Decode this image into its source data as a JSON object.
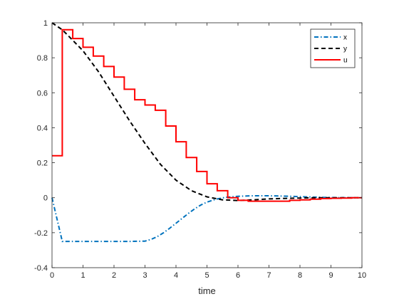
{
  "chart_data": {
    "type": "line",
    "xlabel": "time",
    "ylabel": "",
    "xlim": [
      0,
      10
    ],
    "ylim": [
      -0.4,
      1
    ],
    "xticks": [
      0,
      1,
      2,
      3,
      4,
      5,
      6,
      7,
      8,
      9,
      10
    ],
    "yticks": [
      -0.4,
      -0.2,
      0,
      0.2,
      0.4,
      0.6,
      0.8,
      1
    ],
    "xtick_labels": [
      "0",
      "1",
      "2",
      "3",
      "4",
      "5",
      "6",
      "7",
      "8",
      "9",
      "10"
    ],
    "ytick_labels": [
      "-0.4",
      "-0.2",
      "0",
      "0.2",
      "0.4",
      "0.6",
      "0.8",
      "1"
    ],
    "grid": false,
    "legend_position": "top-right",
    "series": [
      {
        "name": "x",
        "color": "#0072BD",
        "style": "dash-dot",
        "x": [
          0,
          0.33,
          1,
          2,
          2.5,
          3,
          3.2,
          3.4,
          3.6,
          3.8,
          4.0,
          4.2,
          4.4,
          4.6,
          4.8,
          5.0,
          5.3,
          5.6,
          6.0,
          6.5,
          7.0,
          7.5,
          8.0,
          8.5,
          9.0,
          9.5,
          10.0
        ],
        "y": [
          0,
          -0.25,
          -0.25,
          -0.25,
          -0.25,
          -0.248,
          -0.238,
          -0.222,
          -0.2,
          -0.174,
          -0.146,
          -0.118,
          -0.09,
          -0.064,
          -0.042,
          -0.025,
          -0.008,
          0.002,
          0.008,
          0.011,
          0.011,
          0.009,
          0.006,
          0.003,
          0.001,
          0.0,
          0.0
        ]
      },
      {
        "name": "y",
        "color": "#000000",
        "style": "dashed",
        "x": [
          0,
          0.33,
          0.5,
          1.0,
          1.5,
          2.0,
          2.5,
          3.0,
          3.5,
          4.0,
          4.5,
          5.0,
          5.5,
          6.0,
          6.5,
          7.0,
          7.5,
          8.0,
          8.5,
          9.0,
          9.5,
          10.0
        ],
        "y": [
          1.0,
          0.96,
          0.93,
          0.84,
          0.72,
          0.58,
          0.44,
          0.31,
          0.19,
          0.1,
          0.04,
          0.005,
          -0.012,
          -0.016,
          -0.012,
          -0.007,
          -0.004,
          -0.002,
          0.0,
          0.0,
          0.0,
          0.0
        ]
      },
      {
        "name": "u",
        "color": "#FF0000",
        "style": "solid-stairs",
        "x": [
          0,
          0.33,
          0.67,
          1.0,
          1.33,
          1.67,
          2.0,
          2.33,
          2.67,
          3.0,
          3.33,
          3.67,
          4.0,
          4.33,
          4.67,
          5.0,
          5.33,
          5.67,
          6.0,
          6.33,
          6.67,
          7.0,
          7.33,
          7.67,
          8.0,
          8.33,
          8.67,
          9.0,
          9.33,
          9.67
        ],
        "y": [
          0.24,
          0.96,
          0.91,
          0.86,
          0.81,
          0.75,
          0.69,
          0.62,
          0.56,
          0.53,
          0.5,
          0.41,
          0.32,
          0.23,
          0.15,
          0.08,
          0.04,
          0.0,
          -0.015,
          -0.02,
          -0.02,
          -0.02,
          -0.02,
          -0.015,
          -0.012,
          -0.008,
          -0.005,
          -0.003,
          -0.002,
          0.0
        ]
      }
    ]
  }
}
